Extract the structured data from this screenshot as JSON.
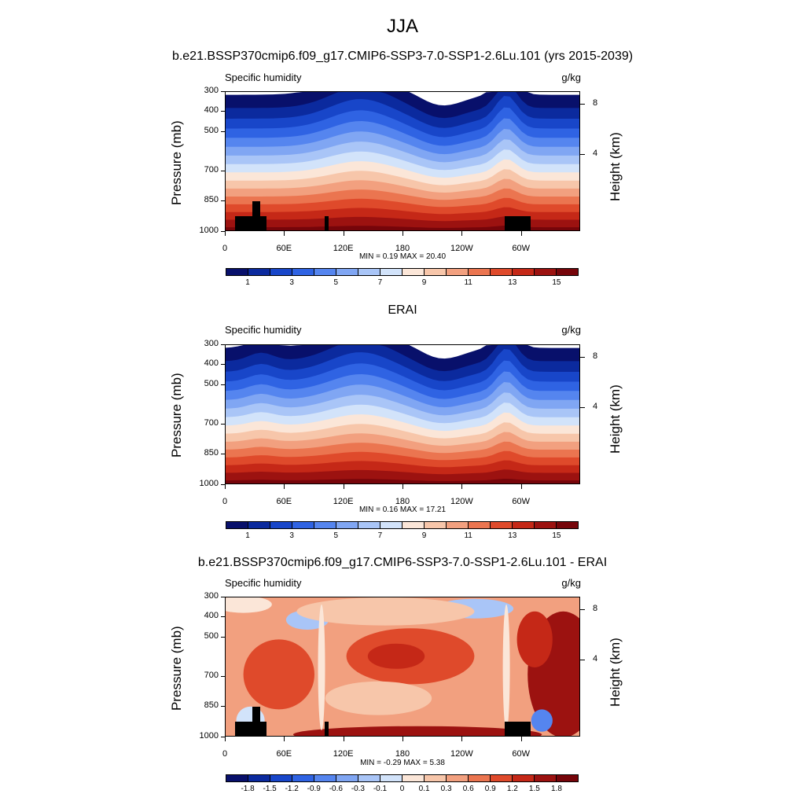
{
  "title": "JJA",
  "panels": [
    {
      "title": "b.e21.BSSP370cmip6.f09_g17.CMIP6-SSP3-7.0-SSP1-2.6Lu.101 (yrs 2015-2039)",
      "left_label": "Specific humidity",
      "right_label": "g/kg",
      "ylabel": "Pressure (mb)",
      "y2label": "Height (km)",
      "minmax": "MIN =   0.19  MAX =  20.40",
      "type": "abs"
    },
    {
      "title": "ERAI",
      "left_label": "Specific humidity",
      "right_label": "g/kg",
      "ylabel": "Pressure (mb)",
      "y2label": "Height (km)",
      "minmax": "MIN =   0.16  MAX =  17.21",
      "type": "abs"
    },
    {
      "title": "b.e21.BSSP370cmip6.f09_g17.CMIP6-SSP3-7.0-SSP1-2.6Lu.101 - ERAI",
      "left_label": "Specific humidity",
      "right_label": "g/kg",
      "ylabel": "Pressure (mb)",
      "y2label": "Height (km)",
      "minmax": "MIN =  -0.29  MAX =   5.38",
      "type": "diff"
    }
  ],
  "chart_data": {
    "type": "heatmap",
    "x_ticks": [
      "0",
      "60E",
      "120E",
      "180",
      "120W",
      "60W"
    ],
    "y_ticks": [
      "300",
      "400",
      "500",
      "700",
      "850",
      "1000"
    ],
    "y2_ticks": [
      "8",
      "4"
    ],
    "abs_colorbar": {
      "labels": [
        "1",
        "3",
        "5",
        "7",
        "9",
        "11",
        "13",
        "15"
      ],
      "colors": [
        "#08106b",
        "#0b2a9e",
        "#1846c9",
        "#2f63e3",
        "#5585ef",
        "#80a6f3",
        "#a9c5f7",
        "#d2e3fa",
        "#fbe6d8",
        "#f7c6aa",
        "#f2a07f",
        "#eb7550",
        "#df4a2b",
        "#c52817",
        "#9c1210",
        "#76050a"
      ]
    },
    "diff_colorbar": {
      "labels": [
        "-1.8",
        "-1.5",
        "-1.2",
        "-0.9",
        "-0.6",
        "-0.3",
        "-0.1",
        "0",
        "0.1",
        "0.3",
        "0.6",
        "0.9",
        "1.2",
        "1.5",
        "1.8"
      ],
      "colors": [
        "#08106b",
        "#0b2a9e",
        "#1846c9",
        "#2f63e3",
        "#5585ef",
        "#80a6f3",
        "#a9c5f7",
        "#d2e3fa",
        "#fbe6d8",
        "#f7c6aa",
        "#f2a07f",
        "#eb7550",
        "#df4a2b",
        "#c52817",
        "#9c1210",
        "#76050a"
      ]
    }
  }
}
